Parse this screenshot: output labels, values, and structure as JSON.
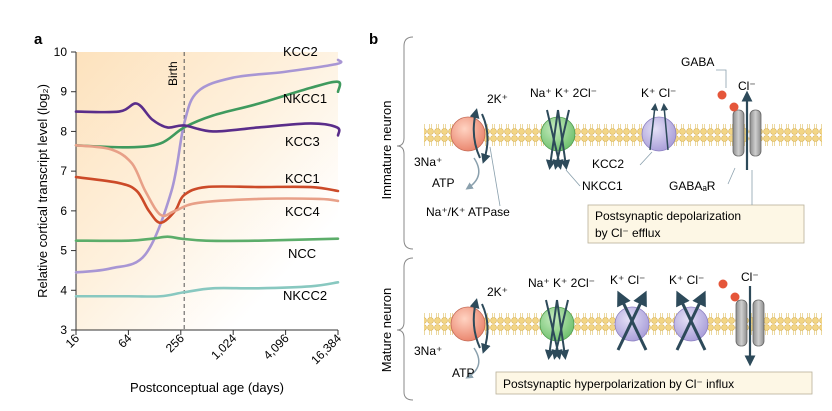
{
  "panel_a": {
    "label": "a",
    "ylabel": "Relative cortical transcript level (log₂)",
    "xlabel": "Postconceptual age (days)",
    "birth_label": "Birth",
    "y_ticks": [
      "3",
      "4",
      "5",
      "6",
      "7",
      "8",
      "9",
      "10"
    ],
    "x_ticks": [
      "16",
      "64",
      "256",
      "1,024",
      "4,096",
      "16,384"
    ]
  },
  "chart_data": {
    "type": "line",
    "xlabel": "Postconceptual age (days)",
    "ylabel": "Relative cortical transcript level (log₂)",
    "x_scale": "log2",
    "xlim": [
      16,
      40000
    ],
    "ylim": [
      3,
      10
    ],
    "grid": false,
    "annotations": [
      {
        "text": "Birth",
        "x": 280
      }
    ],
    "series": [
      {
        "name": "KCC2",
        "color": "#a896d4",
        "x": [
          16,
          40,
          100,
          200,
          280,
          400,
          1000,
          4000,
          16000,
          40000
        ],
        "values": [
          4.45,
          4.55,
          4.9,
          6.5,
          8.2,
          9.0,
          9.35,
          9.5,
          9.7,
          9.8
        ]
      },
      {
        "name": "NKCC1",
        "color": "#3f9a5e",
        "x": [
          16,
          64,
          150,
          280,
          600,
          2000,
          8000,
          20000,
          40000
        ],
        "values": [
          7.65,
          7.6,
          7.7,
          8.1,
          8.4,
          8.7,
          9.1,
          9.25,
          9.0
        ]
      },
      {
        "name": "KCC3",
        "color": "#5a2d8a",
        "x": [
          16,
          50,
          80,
          120,
          180,
          280,
          600,
          2000,
          8000,
          16000,
          40000
        ],
        "values": [
          8.5,
          8.5,
          8.7,
          8.3,
          8.1,
          8.15,
          8.0,
          8.1,
          8.2,
          8.1,
          7.9
        ]
      },
      {
        "name": "KCC1",
        "color": "#cc4a28",
        "x": [
          16,
          50,
          80,
          110,
          150,
          220,
          280,
          500,
          2000,
          8000,
          40000
        ],
        "values": [
          6.85,
          6.7,
          6.5,
          6.0,
          5.7,
          6.0,
          6.4,
          6.6,
          6.6,
          6.6,
          6.5
        ]
      },
      {
        "name": "KCC4",
        "color": "#e8a088",
        "x": [
          16,
          40,
          70,
          100,
          150,
          220,
          400,
          2000,
          10000,
          40000
        ],
        "values": [
          7.65,
          7.55,
          7.2,
          6.5,
          5.9,
          6.0,
          6.2,
          6.3,
          6.3,
          6.25
        ]
      },
      {
        "name": "NCC",
        "color": "#5cad6a",
        "x": [
          16,
          64,
          120,
          180,
          260,
          500,
          2000,
          40000
        ],
        "values": [
          5.25,
          5.25,
          5.3,
          5.35,
          5.3,
          5.25,
          5.25,
          5.3
        ]
      },
      {
        "name": "NKCC2",
        "color": "#88c8c0",
        "x": [
          16,
          64,
          150,
          280,
          600,
          2000,
          8000,
          40000
        ],
        "values": [
          3.85,
          3.85,
          3.85,
          3.95,
          4.05,
          4.05,
          4.1,
          4.2
        ]
      }
    ]
  },
  "panel_b": {
    "label": "b",
    "immature_label": "Immature neuron",
    "mature_label": "Mature neuron",
    "immature": {
      "na": "Na⁺",
      "k2": "2K⁺",
      "na3": "3Na⁺",
      "atp": "ATP",
      "nkcc1_top": "Na⁺ K⁺ 2Cl⁻",
      "kcc2_top": "K⁺  Cl⁻",
      "gaba": "GABA",
      "cl": "Cl⁻",
      "kcc2_label": "KCC2",
      "nkcc1_label": "NKCC1",
      "gabaa_label": "GABAₐR",
      "atpase_label": "Na⁺/K⁺ ATPase",
      "box_line1": "Postsynaptic depolarization",
      "box_line2": "by Cl⁻ efflux"
    },
    "mature": {
      "na": "Na⁺",
      "k2": "2K⁺",
      "na3": "3Na⁺",
      "atp": "ATP",
      "nkcc1_top": "Na⁺ K⁺ 2Cl⁻",
      "kcc_a_top": "K⁺  Cl⁻",
      "kcc_b_top": "K⁺  Cl⁻",
      "cl": "Cl⁻",
      "box": "Postsynaptic hyperpolarization by Cl⁻ influx"
    }
  }
}
